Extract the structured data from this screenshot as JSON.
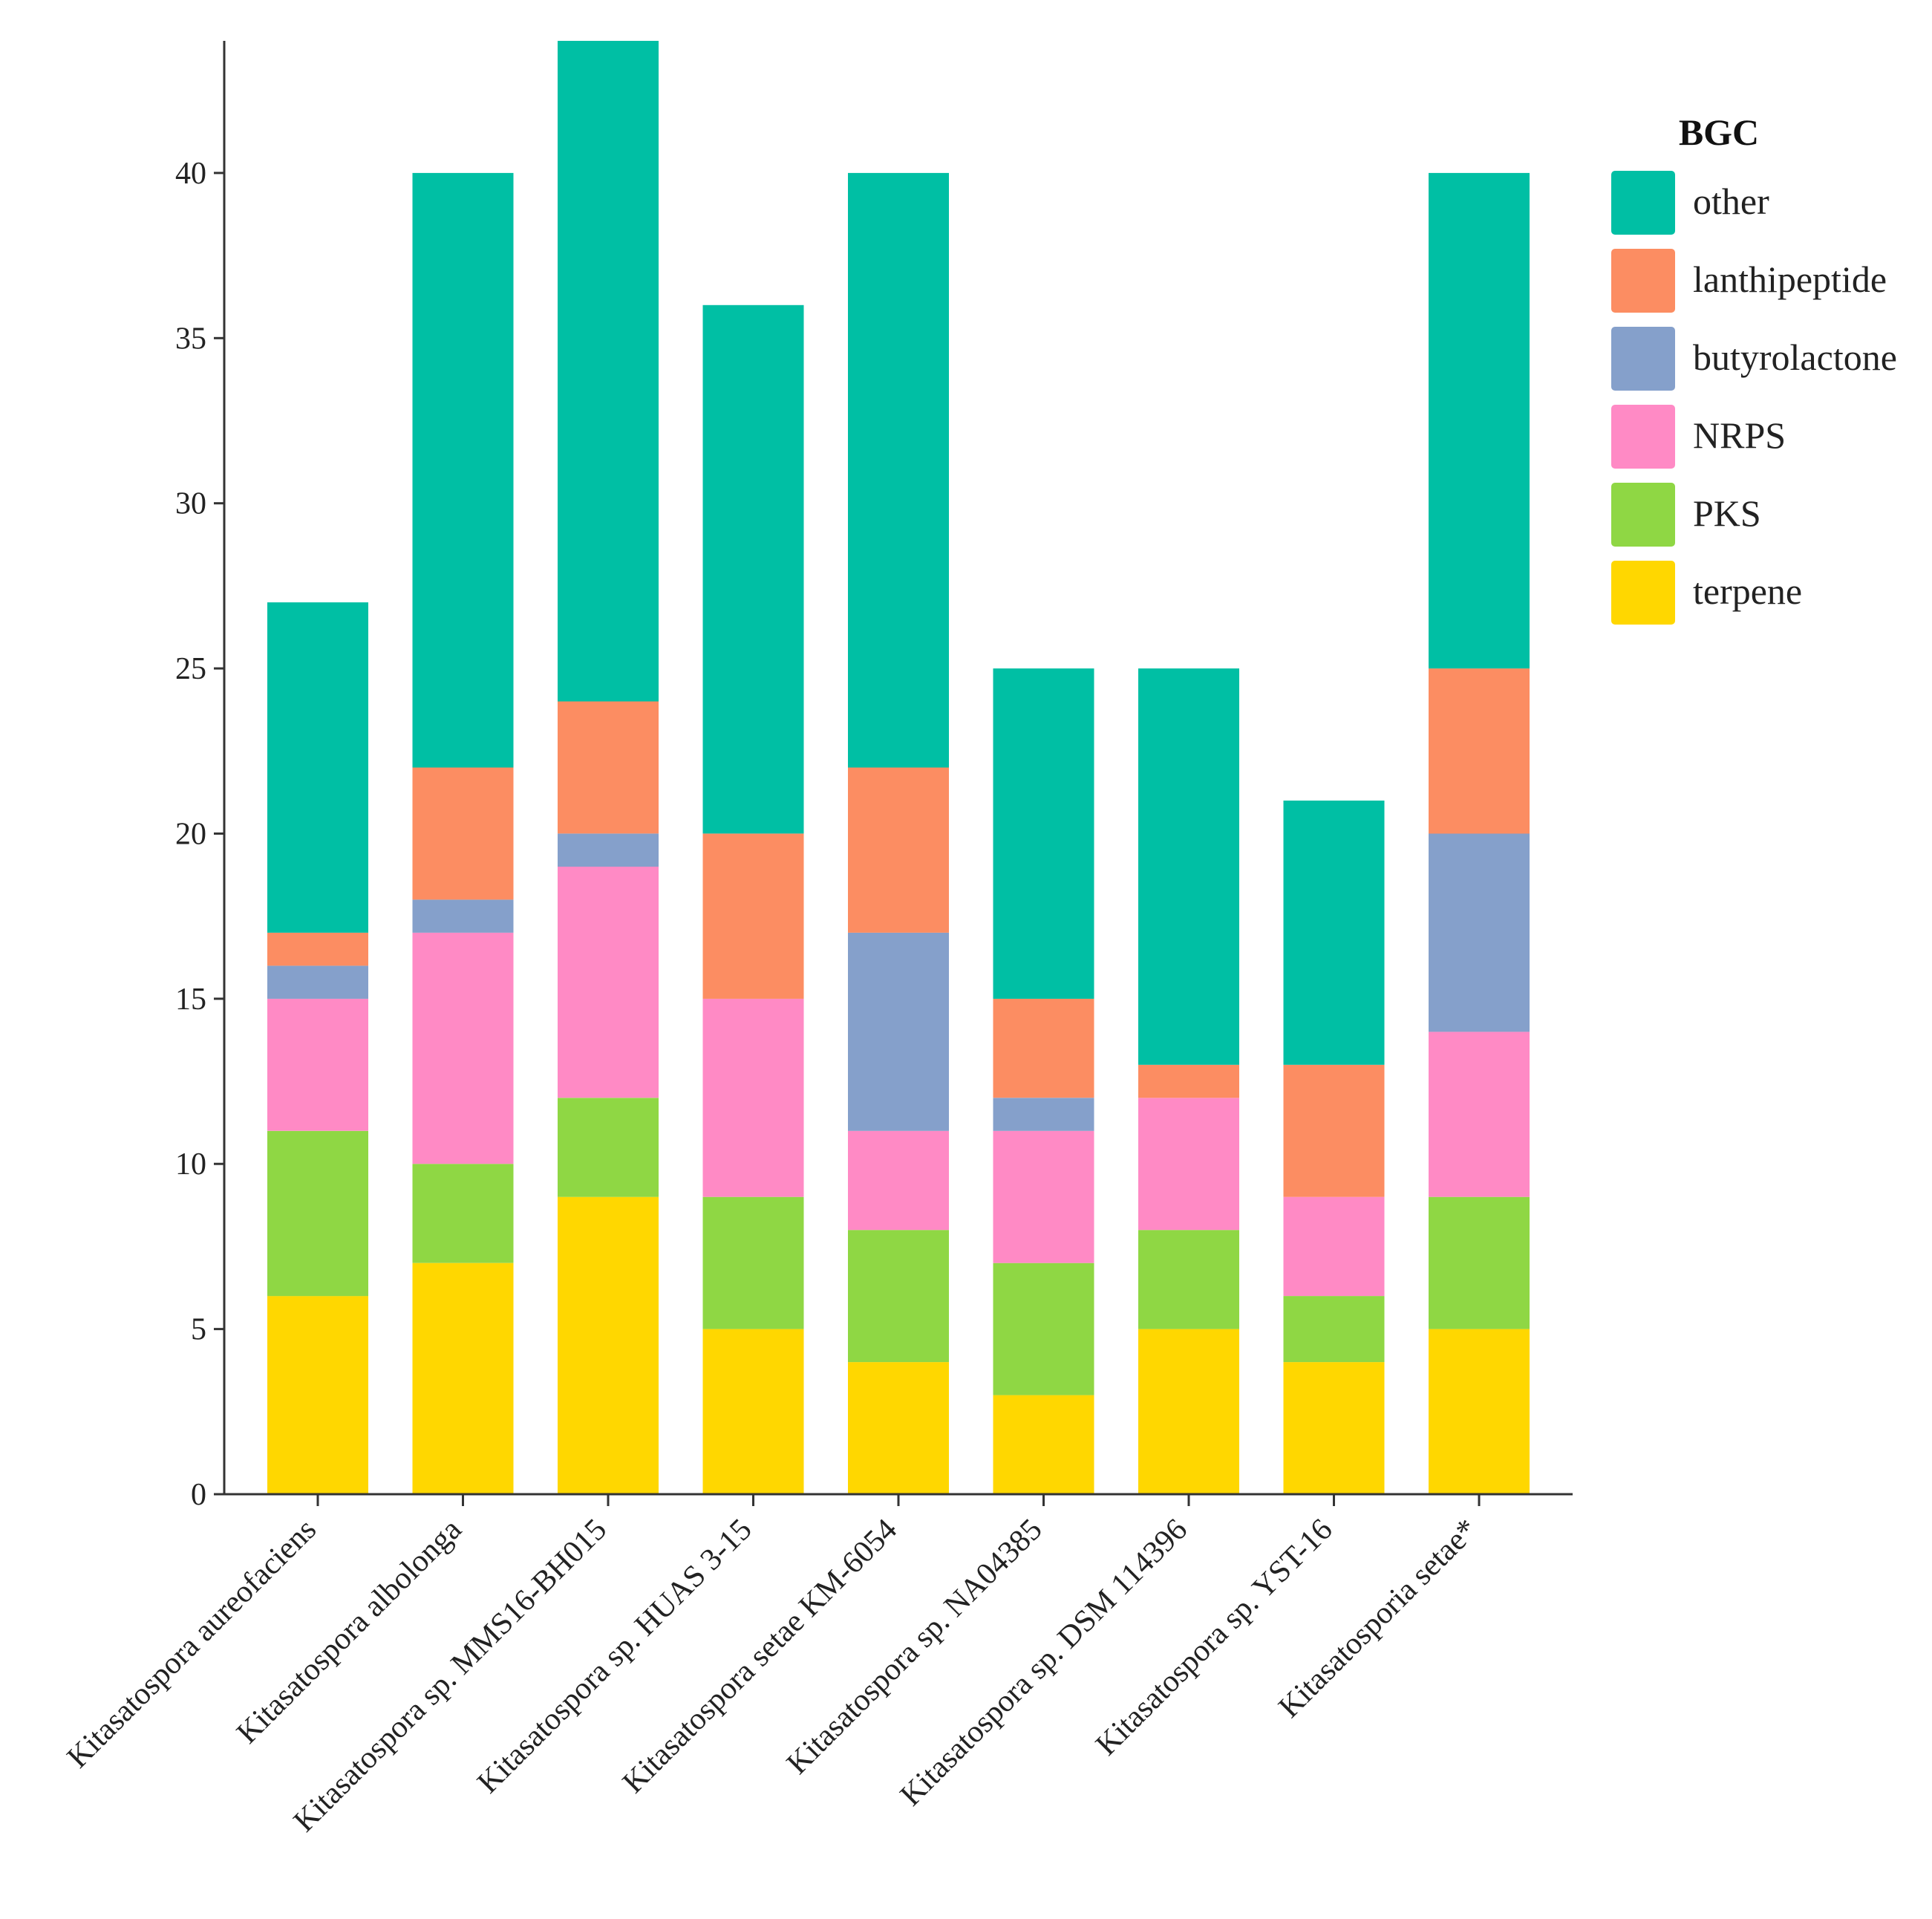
{
  "chart_data": {
    "type": "bar",
    "stacked": true,
    "title": "",
    "xlabel": "",
    "ylabel": "",
    "ylim": [
      0,
      44
    ],
    "yticks": [
      0,
      5,
      10,
      15,
      20,
      25,
      30,
      35,
      40
    ],
    "categories": [
      "Kitasatospora aureofaciens",
      "Kitasatospora albolonga",
      "Kitasatospora sp. MMS16-BH015",
      "Kitasatospora sp. HUAS 3-15",
      "Kitasatospora setae KM-6054",
      "Kitasatospora sp. NA04385",
      "Kitasatospora sp. DSM 114396",
      "Kitasatospora sp. YST-16",
      "Kitasatosporia setae*"
    ],
    "series": [
      {
        "name": "terpene",
        "color": "#FFD700",
        "values": [
          6,
          7,
          9,
          5,
          4,
          3,
          5,
          4,
          5
        ]
      },
      {
        "name": "PKS",
        "color": "#8FD744",
        "values": [
          5,
          3,
          3,
          4,
          4,
          4,
          3,
          2,
          4
        ]
      },
      {
        "name": "NRPS",
        "color": "#FF8AC5",
        "values": [
          4,
          7,
          7,
          6,
          3,
          4,
          4,
          3,
          5
        ]
      },
      {
        "name": "butyrolactone",
        "color": "#85A0CB",
        "values": [
          1,
          1,
          1,
          0,
          6,
          1,
          0,
          0,
          6
        ]
      },
      {
        "name": "lanthipeptide",
        "color": "#FC8D62",
        "values": [
          1,
          4,
          4,
          5,
          5,
          3,
          1,
          4,
          5
        ]
      },
      {
        "name": "other",
        "color": "#00BFA4",
        "values": [
          10,
          18,
          20,
          16,
          18,
          10,
          12,
          8,
          15
        ]
      }
    ],
    "legend": {
      "title": "BGC",
      "position": "top-right",
      "order": [
        "other",
        "lanthipeptide",
        "butyrolactone",
        "NRPS",
        "PKS",
        "terpene"
      ]
    }
  }
}
